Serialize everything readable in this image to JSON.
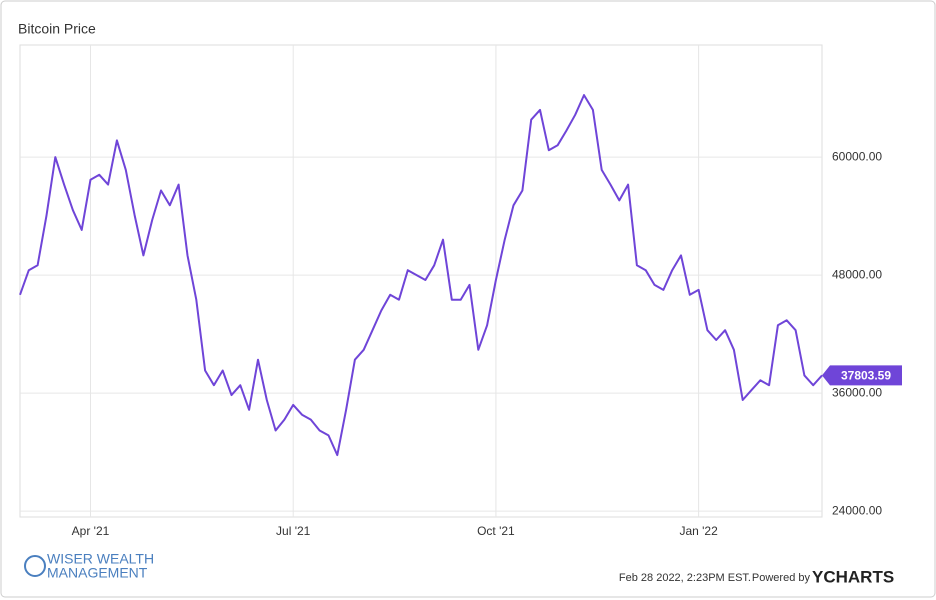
{
  "chart_data": {
    "type": "line",
    "title": "Bitcoin Price",
    "categories": [
      null,
      null,
      null,
      null,
      null,
      null,
      null,
      null,
      "Apr '21",
      null,
      null,
      null,
      null,
      null,
      null,
      null,
      null,
      null,
      null,
      null,
      null,
      null,
      null,
      null,
      null,
      null,
      null,
      null,
      null,
      null,
      null,
      "Jul '21",
      null,
      null,
      null,
      null,
      null,
      null,
      null,
      null,
      null,
      null,
      null,
      null,
      null,
      null,
      null,
      null,
      null,
      null,
      null,
      null,
      null,
      null,
      "Oct '21",
      null,
      null,
      null,
      null,
      null,
      null,
      null,
      null,
      null,
      null,
      null,
      null,
      null,
      null,
      null,
      null,
      null,
      null,
      null,
      null,
      null,
      null,
      "Jan '22",
      null,
      null,
      null,
      null,
      null,
      null,
      null,
      null,
      null,
      null,
      null,
      null,
      null,
      null
    ],
    "series": [
      {
        "name": "Bitcoin Price",
        "color": "#6f45d8",
        "values": [
          46000,
          48500,
          49000,
          54000,
          60000,
          57200,
          54600,
          52600,
          57700,
          58200,
          57200,
          61700,
          58700,
          54100,
          50000,
          53600,
          56600,
          55100,
          57200,
          50000,
          45500,
          38300,
          36800,
          38300,
          35800,
          36800,
          34300,
          39400,
          35300,
          32200,
          33300,
          34800,
          33800,
          33300,
          32200,
          31700,
          29700,
          34300,
          39400,
          40400,
          42400,
          44400,
          46000,
          45500,
          48500,
          48000,
          47500,
          49000,
          51600,
          45500,
          45500,
          47000,
          40400,
          42900,
          47500,
          51600,
          55100,
          56600,
          63800,
          64800,
          60700,
          61200,
          62700,
          64300,
          66300,
          64800,
          58700,
          57200,
          55600,
          57200,
          49000,
          48500,
          47000,
          46500,
          48500,
          50000,
          46000,
          46500,
          42400,
          41400,
          42400,
          40400,
          35300,
          36300,
          37300,
          36800,
          42900,
          43400,
          42400,
          37800,
          36800,
          37803.59
        ]
      }
    ],
    "ylim": [
      23400,
      71400
    ],
    "yticks": [
      {
        "value": 24000,
        "label": "24000.00"
      },
      {
        "value": 36000,
        "label": "36000.00"
      },
      {
        "value": 48000,
        "label": "48000.00"
      },
      {
        "value": 60000,
        "label": "60000.00"
      }
    ],
    "grid": true
  },
  "footer": {
    "logo_line1": "WISER WEALTH",
    "logo_line2": "MANAGEMENT",
    "timestamp": "Feb 28 2022, 2:23PM EST.",
    "powered_by": "Powered by",
    "brand": "YCHARTS"
  }
}
